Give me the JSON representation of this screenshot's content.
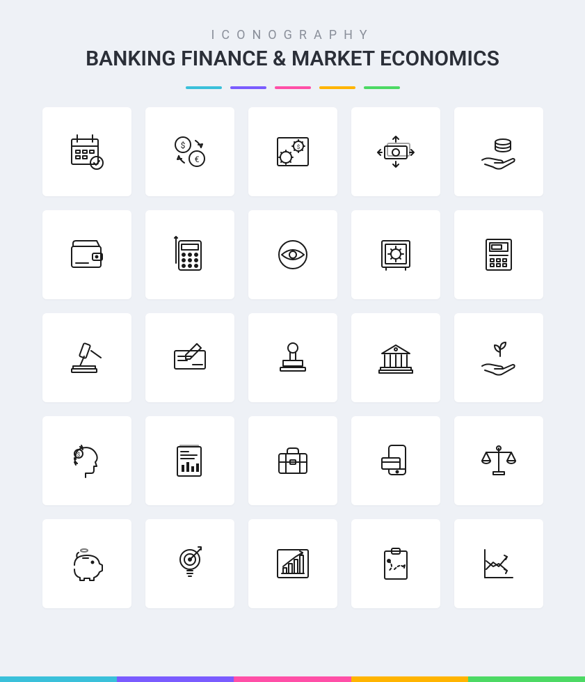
{
  "header": {
    "overline": "ICONOGRAPHY",
    "title": "BANKING FINANCE & MARKET ECONOMICS"
  },
  "accent_colors": [
    "#3ac0da",
    "#7a5cff",
    "#ff4fa7",
    "#ffb400",
    "#4cd964"
  ],
  "footer_colors": [
    "#3ac0da",
    "#7a5cff",
    "#ff4fa7",
    "#ffb400",
    "#4cd964"
  ],
  "background_color": "#eef1f6",
  "tile_background": "#ffffff",
  "icon_stroke": "#1a1a1a",
  "grid": {
    "cols": 5,
    "rows": 5,
    "tile_size": 128,
    "gap": 20
  },
  "icons": [
    [
      "calendar-check",
      "currency-exchange",
      "money-settings",
      "cash-flow",
      "hand-coins"
    ],
    [
      "wallet",
      "calculator",
      "eye-view",
      "safe-vault",
      "atm-machine"
    ],
    [
      "gavel-auction",
      "cheque-sign",
      "stamp",
      "bank-building",
      "hand-growth"
    ],
    [
      "mind-money",
      "report-chart",
      "briefcase",
      "mobile-payment",
      "balance-scale"
    ],
    [
      "piggy-bank",
      "target-idea",
      "growth-chart",
      "strategy-clipboard",
      "trend-lines"
    ]
  ]
}
